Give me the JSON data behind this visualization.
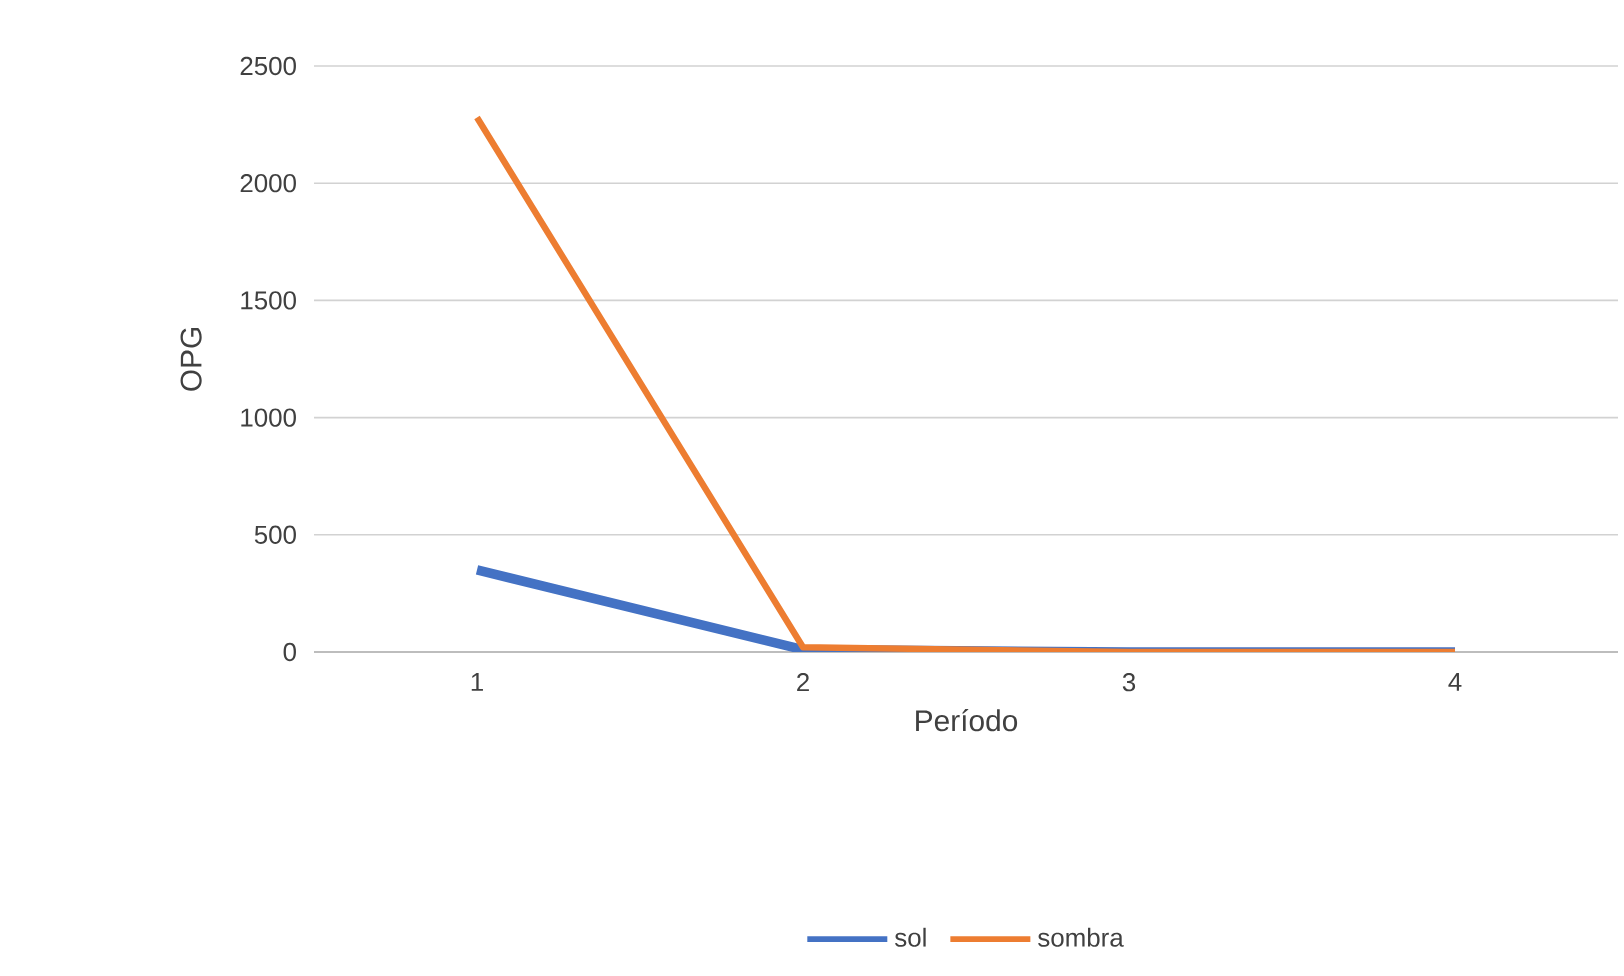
{
  "chart_data": {
    "type": "line",
    "xlabel": "Período",
    "ylabel": "OPG",
    "categories": [
      "1",
      "2",
      "3",
      "4"
    ],
    "series": [
      {
        "name": "sol",
        "color": "#4472c4",
        "values": [
          350,
          10,
          0,
          0
        ]
      },
      {
        "name": "sombra",
        "color": "#ed7d31",
        "values": [
          2280,
          20,
          0,
          0
        ]
      }
    ],
    "ylim": [
      0,
      2500
    ],
    "yticks": [
      0,
      500,
      1000,
      1500,
      2000,
      2500
    ],
    "grid": "y",
    "legend": "bottom"
  }
}
